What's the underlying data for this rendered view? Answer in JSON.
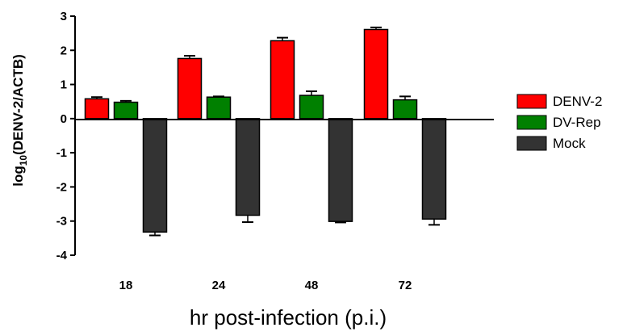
{
  "chart_data": {
    "type": "bar",
    "categories": [
      "18",
      "24",
      "48",
      "72"
    ],
    "series": [
      {
        "name": "DENV-2",
        "color": "#ff0000",
        "values": [
          0.58,
          1.76,
          2.28,
          2.61
        ],
        "errors": [
          0.05,
          0.08,
          0.09,
          0.06
        ]
      },
      {
        "name": "DV-Rep",
        "color": "#008000",
        "values": [
          0.48,
          0.63,
          0.68,
          0.55
        ],
        "errors": [
          0.04,
          0.02,
          0.12,
          0.1
        ]
      },
      {
        "name": "Mock",
        "color": "#333333",
        "values": [
          -3.32,
          -2.83,
          -3.01,
          -2.94
        ],
        "errors": [
          0.1,
          0.2,
          0.03,
          0.17
        ]
      }
    ],
    "ylim": [
      -4,
      3
    ],
    "yticks": [
      "3",
      "2",
      "1",
      "0",
      "-1",
      "-2",
      "-3",
      "-4"
    ],
    "ylabel": {
      "prefix": "log",
      "subscript": "10",
      "suffix": "(DENV-2/ACTB)"
    },
    "xlabel": "hr post-infection (p.i.)",
    "legend_position": "right",
    "grid": false
  }
}
